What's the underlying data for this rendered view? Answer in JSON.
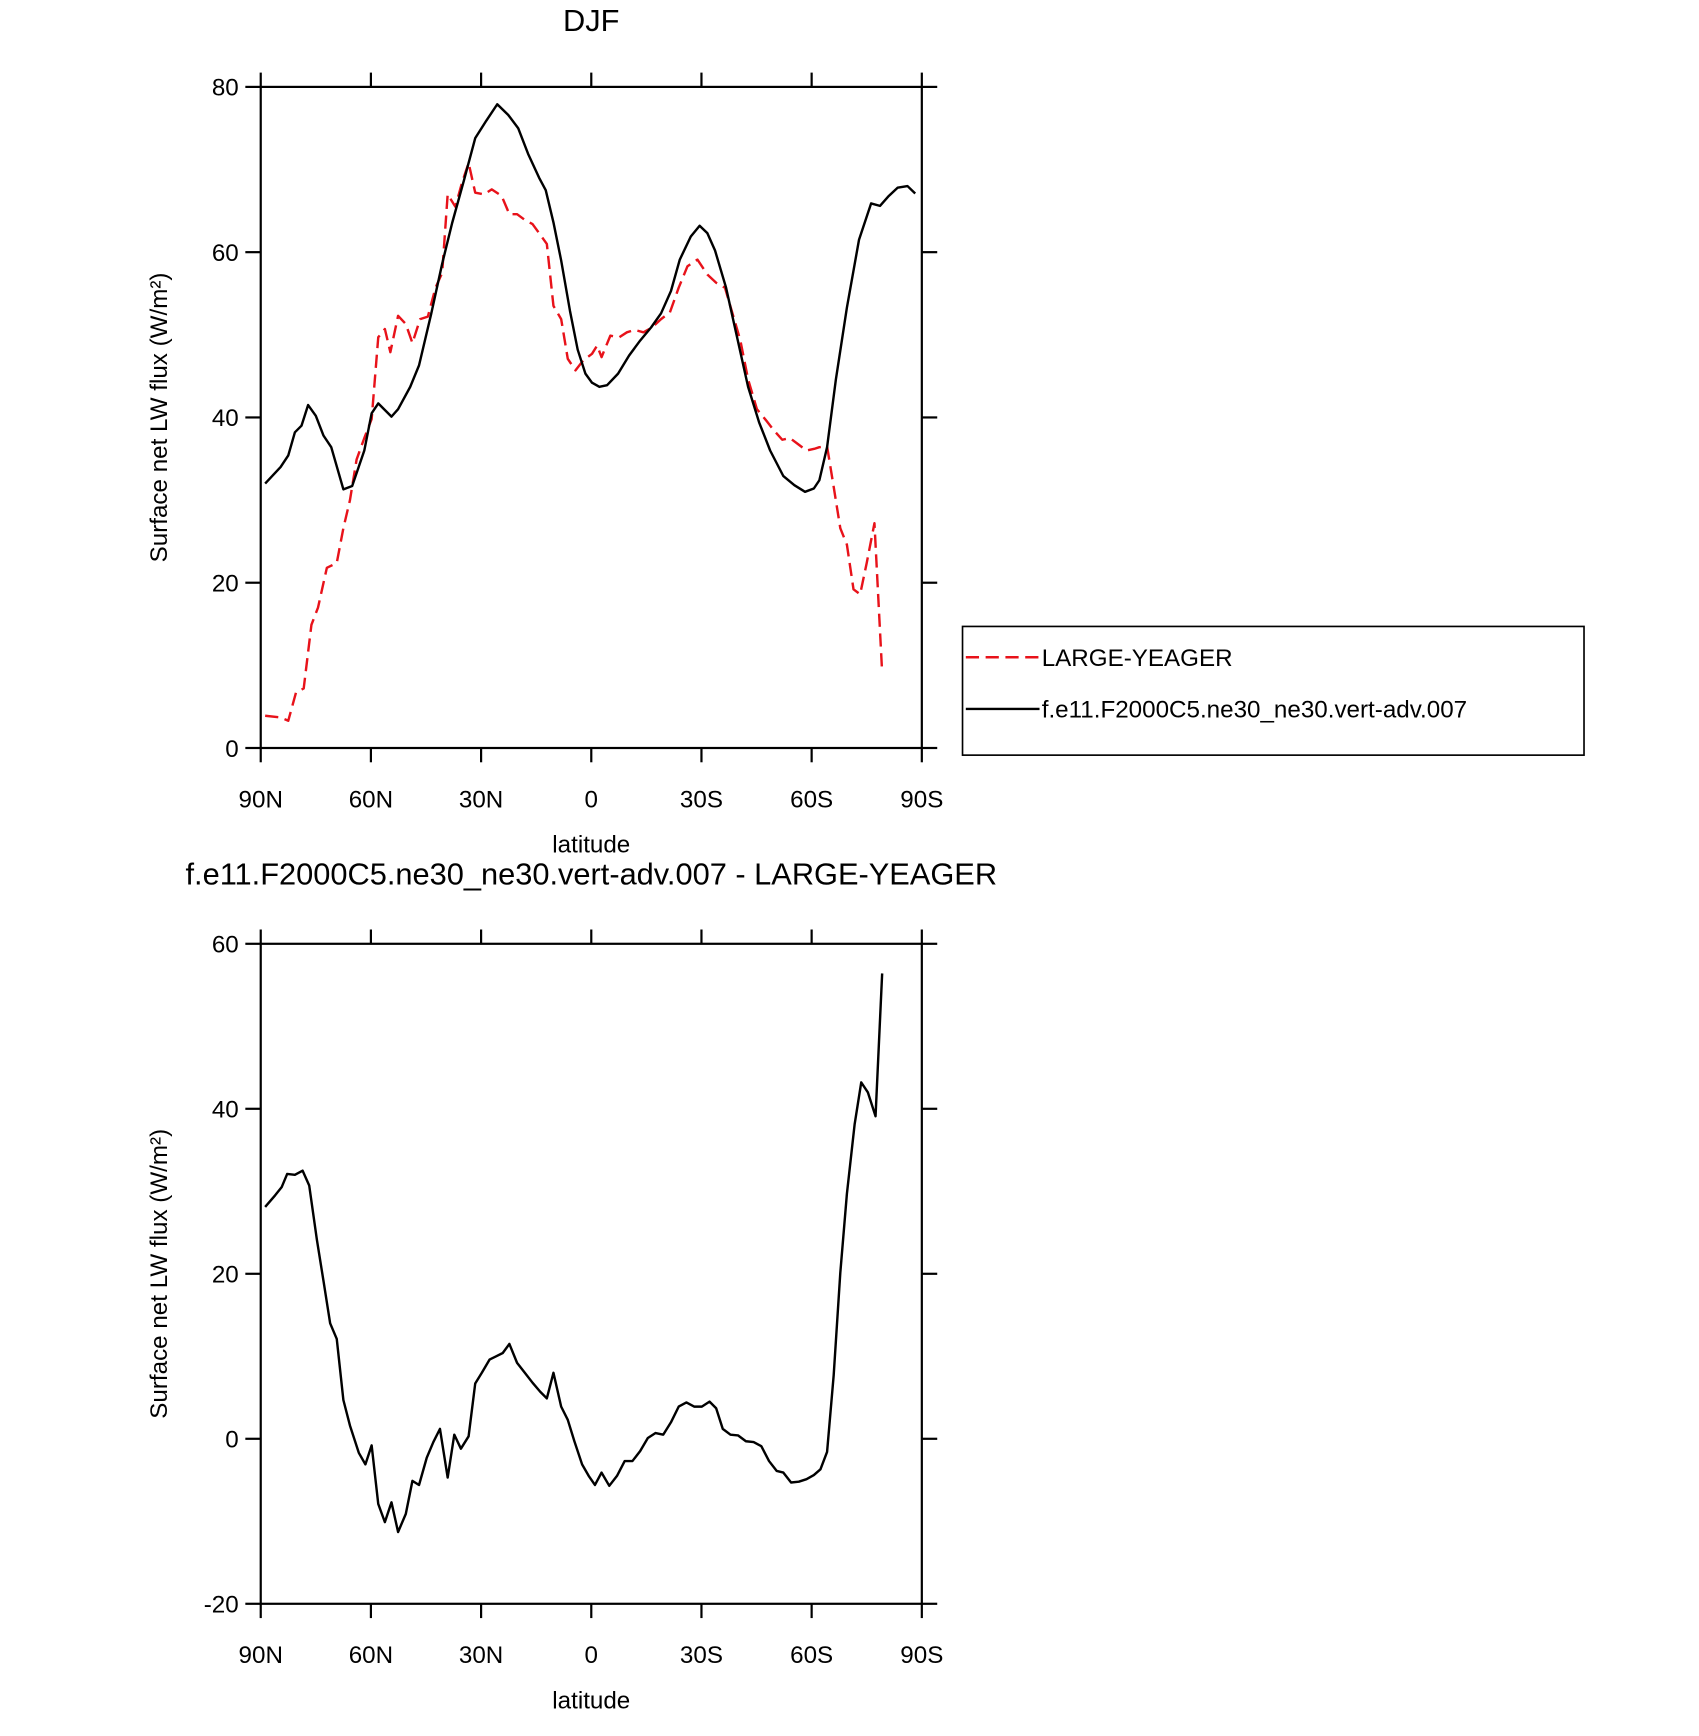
{
  "chart_data": [
    {
      "type": "line",
      "title": "DJF",
      "xlabel": "latitude",
      "ylabel": "Surface net LW flux (W/m²)",
      "xlim": [
        90,
        -90
      ],
      "ylim": [
        0,
        80
      ],
      "xticks": [
        {
          "value": 90,
          "label": "90N"
        },
        {
          "value": 60,
          "label": "60N"
        },
        {
          "value": 30,
          "label": "30N"
        },
        0,
        {
          "value": -30,
          "label": "30S"
        },
        {
          "value": -60,
          "label": "60S"
        },
        {
          "value": -90,
          "label": "90S"
        }
      ],
      "yticks": [
        0,
        20,
        40,
        60,
        80
      ],
      "legend": "right",
      "series": [
        {
          "name": "LARGE-YEAGER",
          "color": "#e8121a",
          "style": "dashed",
          "x": [
            88.8,
            84.6,
            82.5,
            80.4,
            78.3,
            76.2,
            74.4,
            72.0,
            69.3,
            67.5,
            65.7,
            63.9,
            61.8,
            59.8,
            58.0,
            56.2,
            54.7,
            52.6,
            50.5,
            48.7,
            46.6,
            44.5,
            42.4,
            40.6,
            39.1,
            37.0,
            35.2,
            33.4,
            31.6,
            29.2,
            27.1,
            24.4,
            22.3,
            20.2,
            18.1,
            16.0,
            14.2,
            12.1,
            10.3,
            8.2,
            6.4,
            4.3,
            2.2,
            -0.2,
            -1.6,
            -2.8,
            -5.2,
            -7.6,
            -9.7,
            -11.8,
            -14.2,
            -16.6,
            -19.0,
            -21.4,
            -23.8,
            -26.2,
            -28.9,
            -31.6,
            -34.0,
            -36.4,
            -38.5,
            -40.6,
            -42.7,
            -45.1,
            -47.5,
            -49.6,
            -52.0,
            -54.1,
            -56.2,
            -58.6,
            -60.7,
            -62.1,
            -64.2,
            -66.0,
            -67.8,
            -69.6,
            -71.4,
            -73.2,
            -75.0,
            -77.1,
            -79.2
          ],
          "values": [
            3.9,
            3.7,
            3.3,
            6.7,
            7.2,
            14.9,
            17.0,
            21.8,
            22.4,
            26.6,
            30.0,
            34.9,
            37.5,
            39.8,
            49.7,
            50.7,
            47.9,
            52.3,
            51.3,
            49.0,
            51.9,
            52.2,
            55.7,
            57.5,
            67.0,
            65.5,
            68.4,
            70.8,
            67.2,
            67.0,
            67.6,
            66.8,
            64.6,
            64.6,
            63.9,
            63.4,
            62.3,
            61.0,
            53.5,
            51.9,
            47.1,
            45.7,
            46.9,
            47.7,
            48.7,
            47.3,
            49.9,
            49.7,
            50.3,
            50.6,
            50.3,
            50.9,
            51.9,
            52.7,
            55.7,
            58.3,
            59.1,
            57.3,
            56.3,
            55.7,
            52.5,
            49.3,
            44.6,
            41.0,
            39.7,
            38.5,
            37.3,
            37.5,
            36.8,
            36.0,
            36.2,
            36.4,
            36.5,
            31.6,
            26.6,
            24.6,
            19.2,
            18.6,
            22.4,
            27.2,
            9.1
          ]
        },
        {
          "name": "f.e11.F2000C5.ne30_ne30.vert-adv.007",
          "color": "#000000",
          "style": "solid",
          "x": [
            88.8,
            84.6,
            82.5,
            80.7,
            78.9,
            77.1,
            75.0,
            72.9,
            70.8,
            67.5,
            65.1,
            61.8,
            59.8,
            58.0,
            54.4,
            52.6,
            49.3,
            46.9,
            43.6,
            40.6,
            37.9,
            34.6,
            31.6,
            28.6,
            25.6,
            22.6,
            19.9,
            17.2,
            14.2,
            12.4,
            10.3,
            8.2,
            5.8,
            3.7,
            1.6,
            -0.2,
            -2.2,
            -4.3,
            -7.3,
            -10.3,
            -13.3,
            -16.3,
            -19.0,
            -21.7,
            -24.1,
            -27.1,
            -29.5,
            -31.6,
            -33.7,
            -36.7,
            -39.7,
            -42.7,
            -45.7,
            -48.7,
            -52.3,
            -55.3,
            -58.2,
            -60.6,
            -62.1,
            -64.2,
            -66.6,
            -69.6,
            -72.9,
            -76.2,
            -78.6,
            -81.0,
            -83.4,
            -86.1,
            -88.2
          ],
          "values": [
            32.0,
            34.0,
            35.4,
            38.2,
            39.0,
            41.5,
            40.2,
            37.8,
            36.4,
            31.3,
            31.7,
            36.0,
            40.5,
            41.7,
            40.1,
            41.0,
            43.7,
            46.3,
            52.5,
            58.6,
            63.5,
            68.8,
            73.8,
            75.9,
            77.9,
            76.6,
            75.0,
            71.9,
            69.0,
            67.5,
            63.6,
            59.0,
            52.9,
            48.2,
            45.3,
            44.2,
            43.7,
            43.9,
            45.3,
            47.5,
            49.3,
            50.9,
            52.6,
            55.3,
            59.1,
            61.9,
            63.2,
            62.3,
            60.2,
            55.7,
            49.7,
            43.7,
            39.4,
            36.0,
            32.9,
            31.8,
            31.0,
            31.4,
            32.4,
            36.4,
            44.6,
            53.3,
            61.5,
            65.9,
            65.6,
            66.8,
            67.8,
            68.0,
            67.1
          ]
        }
      ]
    },
    {
      "type": "line",
      "title": "f.e11.F2000C5.ne30_ne30.vert-adv.007 - LARGE-YEAGER",
      "xlabel": "latitude",
      "ylabel": "Surface net LW flux (W/m²)",
      "xlim": [
        90,
        -90
      ],
      "ylim": [
        -20,
        60
      ],
      "xticks": [
        {
          "value": 90,
          "label": "90N"
        },
        {
          "value": 60,
          "label": "60N"
        },
        {
          "value": 30,
          "label": "30N"
        },
        0,
        {
          "value": -30,
          "label": "30S"
        },
        {
          "value": -60,
          "label": "60S"
        },
        {
          "value": -90,
          "label": "90S"
        }
      ],
      "yticks": [
        -20,
        0,
        20,
        40,
        60
      ],
      "color": "#000000",
      "x": [
        88.8,
        86.1,
        84.3,
        82.8,
        80.7,
        78.6,
        76.8,
        74.7,
        72.9,
        71.1,
        69.3,
        67.5,
        65.7,
        63.3,
        61.5,
        59.8,
        58.0,
        56.2,
        54.4,
        52.6,
        50.5,
        48.7,
        46.9,
        44.8,
        43.0,
        41.2,
        39.1,
        37.3,
        35.5,
        33.4,
        31.6,
        29.8,
        27.7,
        25.9,
        24.1,
        22.3,
        20.2,
        18.1,
        16.0,
        13.9,
        12.1,
        10.3,
        8.2,
        6.4,
        4.6,
        2.5,
        0.7,
        -1.0,
        -2.8,
        -4.9,
        -7.0,
        -9.1,
        -11.2,
        -13.3,
        -15.4,
        -17.5,
        -19.6,
        -21.7,
        -23.8,
        -25.9,
        -28.0,
        -30.1,
        -32.2,
        -34.0,
        -35.8,
        -37.9,
        -40.0,
        -42.1,
        -44.2,
        -46.3,
        -48.4,
        -50.5,
        -52.3,
        -54.4,
        -56.5,
        -58.6,
        -60.6,
        -62.4,
        -64.2,
        -66.0,
        -67.8,
        -69.6,
        -71.7,
        -73.5,
        -75.3,
        -77.4,
        -79.2
      ],
      "values": [
        28.1,
        29.5,
        30.5,
        32.1,
        32.0,
        32.5,
        30.7,
        24.1,
        19.1,
        14.0,
        12.1,
        4.7,
        1.6,
        -1.7,
        -3.1,
        -0.8,
        -7.9,
        -10.1,
        -7.7,
        -11.3,
        -9.1,
        -5.1,
        -5.6,
        -2.3,
        -0.4,
        1.2,
        -4.7,
        0.5,
        -1.2,
        0.3,
        6.7,
        8.0,
        9.6,
        10.0,
        10.4,
        11.5,
        9.2,
        8.0,
        6.8,
        5.7,
        4.9,
        8.0,
        3.9,
        2.3,
        -0.3,
        -3.1,
        -4.5,
        -5.6,
        -4.1,
        -5.7,
        -4.5,
        -2.7,
        -2.7,
        -1.5,
        0.1,
        0.7,
        0.5,
        2.0,
        3.9,
        4.4,
        3.9,
        3.9,
        4.5,
        3.7,
        1.2,
        0.5,
        0.4,
        -0.3,
        -0.4,
        -0.9,
        -2.7,
        -3.9,
        -4.1,
        -5.3,
        -5.2,
        -4.9,
        -4.4,
        -3.7,
        -1.6,
        7.7,
        20.1,
        29.7,
        38.1,
        43.2,
        42.0,
        39.1,
        56.4
      ]
    }
  ]
}
